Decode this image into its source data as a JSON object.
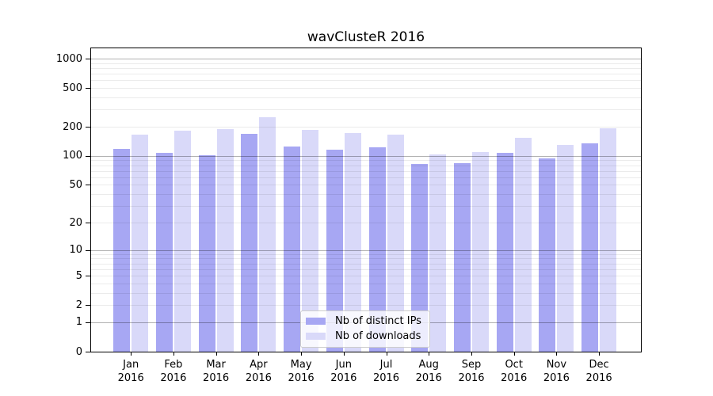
{
  "title": "wavClusteR 2016",
  "colors": {
    "ips": "#a7a7f3",
    "downloads": "#d9d9f9",
    "grid_major": "#0000004d",
    "grid_minor": "#00000014",
    "axis": "#000000",
    "legend_border": "#cccccc",
    "legend_bg": "#ffffffcc"
  },
  "legend": {
    "items": [
      {
        "label": "Nb of distinct IPs",
        "color_key": "ips"
      },
      {
        "label": "Nb of downloads",
        "color_key": "downloads"
      }
    ]
  },
  "chart_data": {
    "type": "bar",
    "title": "wavClusteR 2016",
    "categories": [
      "Jan 2016",
      "Feb 2016",
      "Mar 2016",
      "Apr 2016",
      "May 2016",
      "Jun 2016",
      "Jul 2016",
      "Aug 2016",
      "Sep 2016",
      "Oct 2016",
      "Nov 2016",
      "Dec 2016"
    ],
    "series": [
      {
        "name": "Nb of distinct IPs",
        "values": [
          119,
          107,
          101,
          170,
          126,
          117,
          123,
          83,
          84,
          108,
          94,
          135
        ]
      },
      {
        "name": "Nb of downloads",
        "values": [
          167,
          184,
          190,
          252,
          187,
          173,
          167,
          104,
          109,
          153,
          130,
          194
        ]
      }
    ],
    "xlabel": "",
    "ylabel": "",
    "yscale": "log10(1+x)",
    "yticks": [
      0,
      1,
      2,
      5,
      10,
      20,
      50,
      100,
      200,
      500,
      1000
    ],
    "ylim": [
      0,
      1300
    ],
    "grid": true,
    "grid_major_at": [
      1,
      10,
      100,
      1000
    ],
    "legend_position": "lower center"
  }
}
